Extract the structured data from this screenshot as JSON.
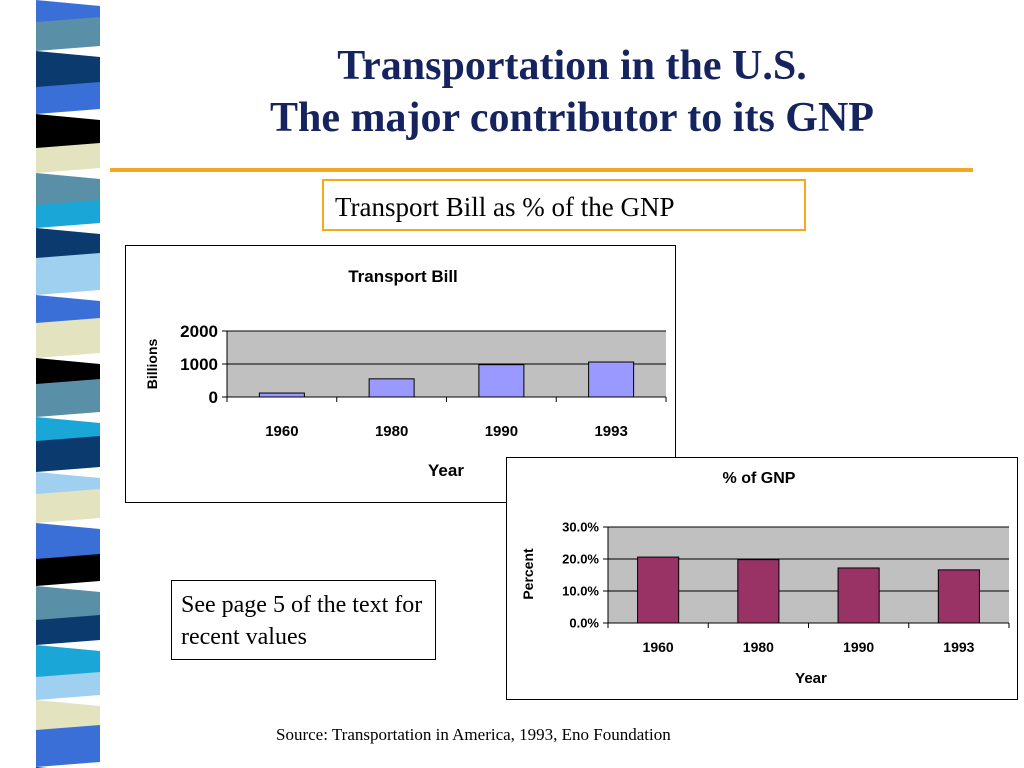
{
  "slide": {
    "title_line1": "Transportation in the U.S.",
    "title_line2": "The major contributor to its GNP",
    "subtitle": "Transport Bill as % of the GNP",
    "note": "See page 5 of the text for recent values",
    "source": "Source: Transportation in America, 1993, Eno Foundation"
  },
  "colors": {
    "title": "#15245e",
    "rule": "#f0a920",
    "plot_bg": "#c0c0c0",
    "bar1": "#9999ff",
    "bar2": "#993366"
  },
  "chart_data": [
    {
      "type": "bar",
      "title": "Transport Bill",
      "xlabel": "Year",
      "ylabel": "Billions",
      "categories": [
        "1960",
        "1980",
        "1990",
        "1993"
      ],
      "values": [
        120,
        550,
        980,
        1060
      ],
      "ylim": [
        0,
        2000
      ],
      "yticks": [
        "0",
        "1000",
        "2000"
      ],
      "grid": true,
      "legend": "none"
    },
    {
      "type": "bar",
      "title": "% of GNP",
      "xlabel": "Year",
      "ylabel": "Percent",
      "categories": [
        "1960",
        "1980",
        "1990",
        "1993"
      ],
      "values": [
        0.206,
        0.198,
        0.172,
        0.166
      ],
      "ylim": [
        0,
        0.3
      ],
      "yticks": [
        "0.0%",
        "10.0%",
        "20.0%",
        "30.0%"
      ],
      "grid": true,
      "legend": "none"
    }
  ]
}
